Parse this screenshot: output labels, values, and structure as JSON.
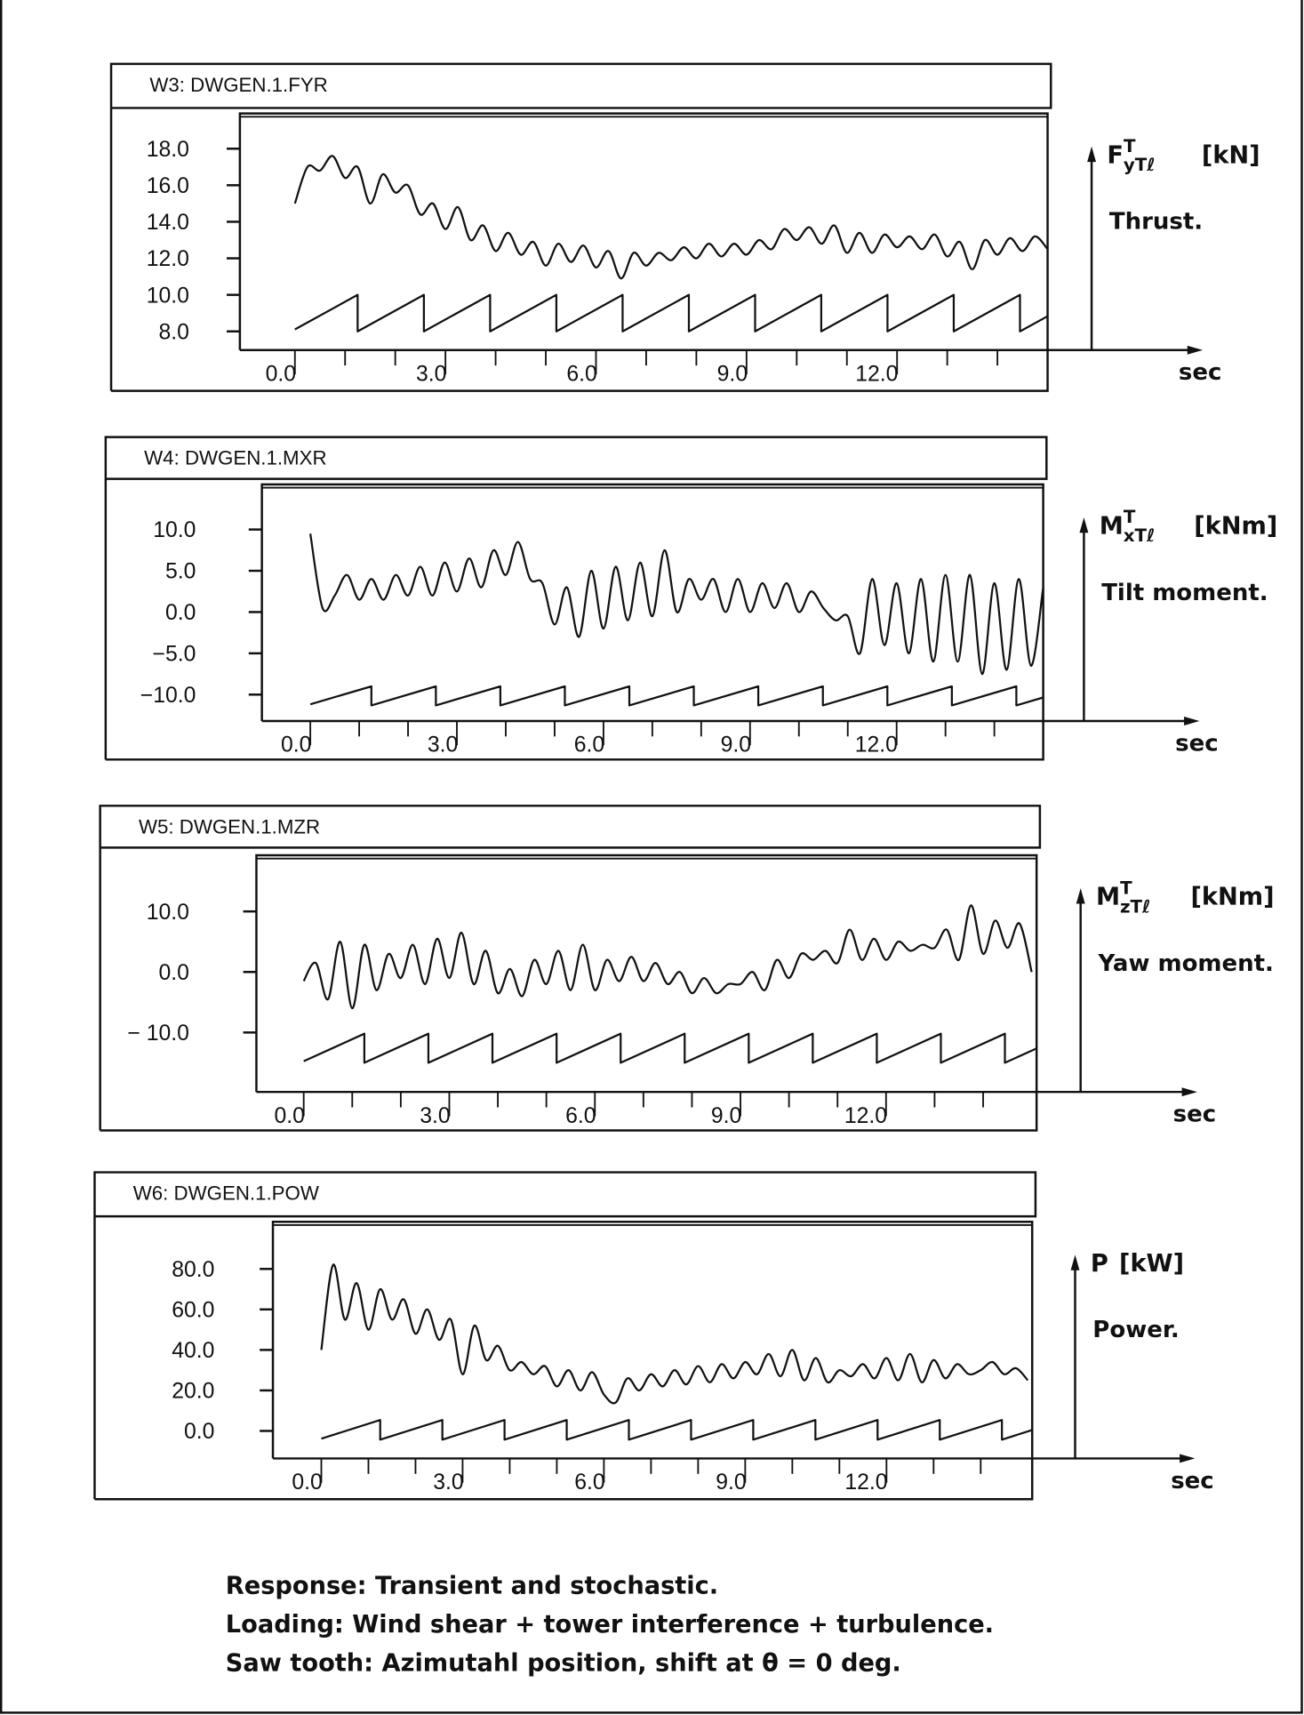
{
  "chart_data": [
    {
      "type": "line",
      "title": "W3:  DWGEN.1.FYR",
      "quantity": {
        "symbol": "F",
        "sup": "T",
        "sub": "yTℓ",
        "unit": "[kN]",
        "description": "Thrust."
      },
      "xlabel": "sec",
      "xticks": [
        {
          "value": 0,
          "label": "0.0"
        },
        {
          "value": 3,
          "label": "3.0"
        },
        {
          "value": 6,
          "label": "6.0"
        },
        {
          "value": 9,
          "label": "9.0"
        },
        {
          "value": 12,
          "label": "12.0"
        }
      ],
      "yticks": [
        {
          "value": 18,
          "label": "18.0"
        },
        {
          "value": 16,
          "label": "16.0"
        },
        {
          "value": 14,
          "label": "14.0"
        },
        {
          "value": 12,
          "label": "12.0"
        },
        {
          "value": 10,
          "label": "10.0"
        },
        {
          "value": 8,
          "label": "8.0"
        }
      ],
      "xlim": [
        0,
        15
      ],
      "x": [
        0,
        0.25,
        0.5,
        0.75,
        1,
        1.25,
        1.5,
        1.75,
        2,
        2.25,
        2.5,
        2.75,
        3,
        3.25,
        3.5,
        3.75,
        4,
        4.25,
        4.5,
        4.75,
        5,
        5.25,
        5.5,
        5.75,
        6,
        6.25,
        6.5,
        6.75,
        7,
        7.25,
        7.5,
        7.75,
        8,
        8.25,
        8.5,
        8.75,
        9,
        9.25,
        9.5,
        9.75,
        10,
        10.25,
        10.5,
        10.75,
        11,
        11.25,
        11.5,
        11.75,
        12,
        12.25,
        12.5,
        12.75,
        13,
        13.25,
        13.5,
        13.75,
        14,
        14.25,
        14.5,
        14.75,
        15
      ],
      "values": [
        15.0,
        17.0,
        16.8,
        17.6,
        16.4,
        17.0,
        15.0,
        16.6,
        15.6,
        16.0,
        14.4,
        15.0,
        13.6,
        14.8,
        13.0,
        13.8,
        12.4,
        13.4,
        12.2,
        12.9,
        11.6,
        12.8,
        11.8,
        12.7,
        11.5,
        12.4,
        10.9,
        12.3,
        11.6,
        12.3,
        11.9,
        12.6,
        12.0,
        12.8,
        12.1,
        12.8,
        12.2,
        13.0,
        12.5,
        13.6,
        13.0,
        13.7,
        12.8,
        13.8,
        12.3,
        13.4,
        12.3,
        13.3,
        12.6,
        13.2,
        12.5,
        13.3,
        12.1,
        12.9,
        11.4,
        13.0,
        12.2,
        13.1,
        12.4,
        13.2,
        12.5
      ],
      "sawtooth": {
        "low": 8.0,
        "high": 10.0,
        "period_s": 1.32,
        "first_drop_s": 1.25
      }
    },
    {
      "type": "line",
      "title": "W4:  DWGEN.1.MXR",
      "quantity": {
        "symbol": "M",
        "sup": "T",
        "sub": "xTℓ",
        "unit": "[kNm]",
        "description": "Tilt moment."
      },
      "xlabel": "sec",
      "xticks": [
        {
          "value": 0,
          "label": "0.0"
        },
        {
          "value": 3,
          "label": "3.0"
        },
        {
          "value": 6,
          "label": "6.0"
        },
        {
          "value": 9,
          "label": "9.0"
        },
        {
          "value": 12,
          "label": "12.0"
        }
      ],
      "yticks": [
        {
          "value": 10,
          "label": "10.0"
        },
        {
          "value": 5,
          "label": "5.0"
        },
        {
          "value": 0,
          "label": "0.0"
        },
        {
          "value": -5,
          "label": "−5.0"
        },
        {
          "value": -10,
          "label": "−10.0"
        }
      ],
      "xlim": [
        0,
        15
      ],
      "x": [
        0,
        0.25,
        0.5,
        0.75,
        1,
        1.25,
        1.5,
        1.75,
        2,
        2.25,
        2.5,
        2.75,
        3,
        3.25,
        3.5,
        3.75,
        4,
        4.25,
        4.5,
        4.75,
        5,
        5.25,
        5.5,
        5.75,
        6,
        6.25,
        6.5,
        6.75,
        7,
        7.25,
        7.5,
        7.75,
        8,
        8.25,
        8.5,
        8.75,
        9,
        9.25,
        9.5,
        9.75,
        10,
        10.25,
        10.5,
        10.75,
        11,
        11.25,
        11.5,
        11.75,
        12,
        12.25,
        12.5,
        12.75,
        13,
        13.25,
        13.5,
        13.75,
        14,
        14.25,
        14.5,
        14.75,
        15
      ],
      "values": [
        9.5,
        0.5,
        2.0,
        4.5,
        1.5,
        4.0,
        1.5,
        4.5,
        2.0,
        5.5,
        2.0,
        6.0,
        2.5,
        6.5,
        3.0,
        7.5,
        4.5,
        8.5,
        4.0,
        3.5,
        -1.5,
        3.0,
        -3.0,
        5.0,
        -2.0,
        5.5,
        -1.0,
        6.0,
        -0.5,
        7.5,
        0.0,
        4.0,
        1.5,
        4.0,
        0.0,
        4.0,
        0.0,
        3.5,
        0.5,
        3.5,
        0.0,
        2.5,
        0.5,
        -1.0,
        -0.5,
        -5.0,
        4.0,
        -4.0,
        3.5,
        -5.0,
        4.0,
        -6.0,
        4.5,
        -6.0,
        4.5,
        -7.5,
        3.5,
        -7.0,
        4.0,
        -6.5,
        3.0
      ],
      "sawtooth": {
        "low": -11.3,
        "high": -9.0,
        "period_s": 1.32,
        "first_drop_s": 1.25
      }
    },
    {
      "type": "line",
      "title": "W5:  DWGEN.1.MZR",
      "quantity": {
        "symbol": "M",
        "sup": "T",
        "sub": "zTℓ",
        "unit": "[kNm]",
        "description": "Yaw moment."
      },
      "xlabel": "sec",
      "xticks": [
        {
          "value": 0,
          "label": "0.0"
        },
        {
          "value": 3,
          "label": "3.0"
        },
        {
          "value": 6,
          "label": "6.0"
        },
        {
          "value": 9,
          "label": "9.0"
        },
        {
          "value": 12,
          "label": "12.0"
        }
      ],
      "yticks": [
        {
          "value": 10,
          "label": "10.0"
        },
        {
          "value": 0,
          "label": "0.0"
        },
        {
          "value": -10,
          "label": "− 10.0"
        }
      ],
      "xlim": [
        0,
        15
      ],
      "x": [
        0,
        0.25,
        0.5,
        0.75,
        1,
        1.25,
        1.5,
        1.75,
        2,
        2.25,
        2.5,
        2.75,
        3,
        3.25,
        3.5,
        3.75,
        4,
        4.25,
        4.5,
        4.75,
        5,
        5.25,
        5.5,
        5.75,
        6,
        6.25,
        6.5,
        6.75,
        7,
        7.25,
        7.5,
        7.75,
        8,
        8.25,
        8.5,
        8.75,
        9,
        9.25,
        9.5,
        9.75,
        10,
        10.25,
        10.5,
        10.75,
        11,
        11.25,
        11.5,
        11.75,
        12,
        12.25,
        12.5,
        12.75,
        13,
        13.25,
        13.5,
        13.75,
        14,
        14.25,
        14.5,
        14.75,
        15
      ],
      "values": [
        -1.5,
        1.5,
        -4.5,
        5.0,
        -6.0,
        4.5,
        -3.0,
        3.0,
        -1.0,
        4.5,
        -2.0,
        5.5,
        -1.0,
        6.5,
        -2.0,
        3.5,
        -3.5,
        0.5,
        -4.0,
        2.0,
        -2.0,
        3.5,
        -3.0,
        4.5,
        -3.0,
        2.0,
        -1.5,
        2.5,
        -1.5,
        1.5,
        -2.0,
        0.0,
        -3.5,
        -1.0,
        -3.5,
        -2.0,
        -2.0,
        0.0,
        -3.0,
        2.0,
        -1.0,
        3.0,
        2.0,
        3.5,
        1.5,
        7.0,
        2.0,
        5.5,
        2.0,
        5.0,
        3.5,
        4.5,
        4.0,
        7.0,
        2.0,
        11.0,
        3.0,
        8.5,
        4.0,
        8.0,
        0.0
      ],
      "sawtooth": {
        "low": -15.0,
        "high": -10.2,
        "period_s": 1.32,
        "first_drop_s": 1.25
      }
    },
    {
      "type": "line",
      "title": "W6:  DWGEN.1.POW",
      "quantity": {
        "symbol": "P",
        "sup": "",
        "sub": "",
        "unit": "[kW]",
        "description": "Power."
      },
      "xlabel": "sec",
      "xticks": [
        {
          "value": 0,
          "label": "0.0"
        },
        {
          "value": 3,
          "label": "3.0"
        },
        {
          "value": 6,
          "label": "6.0"
        },
        {
          "value": 9,
          "label": "9.0"
        },
        {
          "value": 12,
          "label": "12.0"
        }
      ],
      "yticks": [
        {
          "value": 80,
          "label": "80.0"
        },
        {
          "value": 60,
          "label": "60.0"
        },
        {
          "value": 40,
          "label": "40.0"
        },
        {
          "value": 20,
          "label": "20.0"
        },
        {
          "value": 0,
          "label": "0.0"
        }
      ],
      "xlim": [
        0,
        15
      ],
      "x": [
        0,
        0.25,
        0.5,
        0.75,
        1,
        1.25,
        1.5,
        1.75,
        2,
        2.25,
        2.5,
        2.75,
        3,
        3.25,
        3.5,
        3.75,
        4,
        4.25,
        4.5,
        4.75,
        5,
        5.25,
        5.5,
        5.75,
        6,
        6.25,
        6.5,
        6.75,
        7,
        7.25,
        7.5,
        7.75,
        8,
        8.25,
        8.5,
        8.75,
        9,
        9.25,
        9.5,
        9.75,
        10,
        10.25,
        10.5,
        10.75,
        11,
        11.25,
        11.5,
        11.75,
        12,
        12.25,
        12.5,
        12.75,
        13,
        13.25,
        13.5,
        13.75,
        14,
        14.25,
        14.5,
        14.75,
        15
      ],
      "values": [
        40,
        82,
        55,
        73,
        50,
        70,
        55,
        65,
        48,
        60,
        45,
        55,
        28,
        52,
        35,
        42,
        30,
        34,
        28,
        32,
        22,
        30,
        20,
        29,
        18,
        14,
        26,
        20,
        28,
        22,
        30,
        23,
        32,
        24,
        33,
        26,
        34,
        28,
        38,
        27,
        40,
        25,
        36,
        24,
        30,
        27,
        33,
        26,
        36,
        25,
        38,
        24,
        35,
        26,
        33,
        28,
        30,
        34,
        28,
        31,
        25
      ],
      "sawtooth": {
        "low": -4.3,
        "high": 5.4,
        "period_s": 1.32,
        "first_drop_s": 1.25
      }
    }
  ],
  "caption": {
    "lines": [
      "Response: Transient and stochastic.",
      "Loading: Wind shear + tower interference + turbulence.",
      "Saw tooth: Azimutahl position, shift at θ = 0 deg."
    ]
  }
}
